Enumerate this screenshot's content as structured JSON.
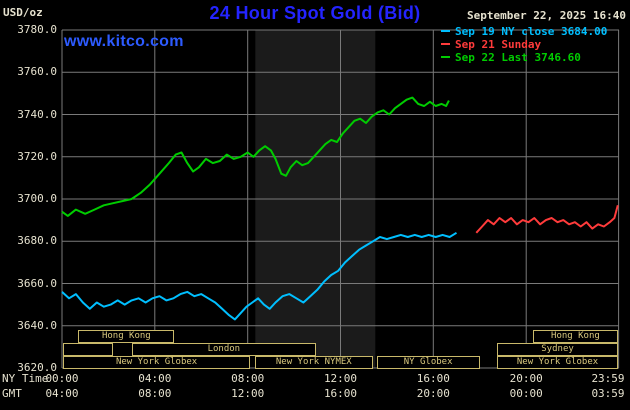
{
  "header": {
    "units": "USD/oz",
    "title": "24 Hour Spot Gold (Bid)",
    "timestamp": "September 22, 2025 16:40",
    "watermark": "www.kitco.com",
    "legend": [
      {
        "label": "Sep 19 NY close 3684.00",
        "color": "#00bfff"
      },
      {
        "label": "Sep 21 Sunday",
        "color": "#ff3b3b"
      },
      {
        "label": "Sep 22 Last 3746.60",
        "color": "#00cc00"
      }
    ]
  },
  "axes": {
    "ny_label": "NY Time",
    "gmt_label": "GMT"
  },
  "colors": {
    "background": "#000000",
    "grid": "#7a7a7a",
    "band": "#1b1b1b",
    "axis_text": "#e6e2cf",
    "title": "#2424ff",
    "watermark": "#2d5bff",
    "session_border": "#c9b96a",
    "session_text": "#d8c87e"
  },
  "chart_data": {
    "type": "line",
    "title": "24 Hour Spot Gold (Bid)",
    "ylabel": "USD/oz",
    "ylim": [
      3620,
      3780
    ],
    "grid": true,
    "legend_position": "top-right",
    "yticks": [
      {
        "value": 3780,
        "label": "3780.0"
      },
      {
        "value": 3760,
        "label": "3760.0"
      },
      {
        "value": 3740,
        "label": "3740.0"
      },
      {
        "value": 3720,
        "label": "3720.0"
      },
      {
        "value": 3700,
        "label": "3700.0"
      },
      {
        "value": 3680,
        "label": "3680.0"
      },
      {
        "value": 3660,
        "label": "3660.0"
      },
      {
        "value": 3640,
        "label": "3640.0"
      },
      {
        "value": 3620,
        "label": "3620.0"
      }
    ],
    "xticks": [
      {
        "hour": 0,
        "ny": "00:00",
        "gmt": "04:00"
      },
      {
        "hour": 4,
        "ny": "04:00",
        "gmt": "08:00"
      },
      {
        "hour": 8,
        "ny": "08:00",
        "gmt": "12:00"
      },
      {
        "hour": 12,
        "ny": "12:00",
        "gmt": "16:00"
      },
      {
        "hour": 16,
        "ny": "16:00",
        "gmt": "20:00"
      },
      {
        "hour": 20,
        "ny": "20:00",
        "gmt": "00:00"
      },
      {
        "hour": 23.983,
        "ny": "23:59",
        "gmt": "03:59"
      }
    ],
    "band": {
      "hours": [
        8.33,
        13.5
      ]
    },
    "series": [
      {
        "id": "sep19",
        "name": "Sep 19 NY close",
        "color": "#00bfff",
        "close": 3684.0,
        "points": [
          [
            0,
            3656
          ],
          [
            0.3,
            3653
          ],
          [
            0.6,
            3655
          ],
          [
            0.9,
            3651
          ],
          [
            1.2,
            3648
          ],
          [
            1.5,
            3651
          ],
          [
            1.8,
            3649
          ],
          [
            2.1,
            3650
          ],
          [
            2.4,
            3652
          ],
          [
            2.7,
            3650
          ],
          [
            3.0,
            3652
          ],
          [
            3.3,
            3653
          ],
          [
            3.6,
            3651
          ],
          [
            3.9,
            3653
          ],
          [
            4.2,
            3654
          ],
          [
            4.5,
            3652
          ],
          [
            4.8,
            3653
          ],
          [
            5.1,
            3655
          ],
          [
            5.4,
            3656
          ],
          [
            5.7,
            3654
          ],
          [
            6.0,
            3655
          ],
          [
            6.3,
            3653
          ],
          [
            6.6,
            3651
          ],
          [
            6.9,
            3648
          ],
          [
            7.2,
            3645
          ],
          [
            7.45,
            3643
          ],
          [
            7.7,
            3646
          ],
          [
            7.95,
            3649
          ],
          [
            8.2,
            3651
          ],
          [
            8.45,
            3653
          ],
          [
            8.7,
            3650
          ],
          [
            8.95,
            3648
          ],
          [
            9.2,
            3651
          ],
          [
            9.5,
            3654
          ],
          [
            9.8,
            3655
          ],
          [
            10.1,
            3653
          ],
          [
            10.4,
            3651
          ],
          [
            10.7,
            3654
          ],
          [
            11.0,
            3657
          ],
          [
            11.3,
            3661
          ],
          [
            11.6,
            3664
          ],
          [
            11.9,
            3666
          ],
          [
            12.2,
            3670
          ],
          [
            12.5,
            3673
          ],
          [
            12.8,
            3676
          ],
          [
            13.1,
            3678
          ],
          [
            13.4,
            3680
          ],
          [
            13.7,
            3682
          ],
          [
            14.0,
            3681
          ],
          [
            14.3,
            3682
          ],
          [
            14.6,
            3683
          ],
          [
            14.9,
            3682
          ],
          [
            15.2,
            3683
          ],
          [
            15.5,
            3682
          ],
          [
            15.8,
            3683
          ],
          [
            16.1,
            3682
          ],
          [
            16.4,
            3683
          ],
          [
            16.7,
            3682
          ],
          [
            17.0,
            3684
          ]
        ]
      },
      {
        "id": "sep21",
        "name": "Sep 21 Sunday",
        "color": "#ff3b3b",
        "points": [
          [
            17.85,
            3684
          ],
          [
            18.1,
            3687
          ],
          [
            18.35,
            3690
          ],
          [
            18.6,
            3688
          ],
          [
            18.85,
            3691
          ],
          [
            19.1,
            3689
          ],
          [
            19.35,
            3691
          ],
          [
            19.6,
            3688
          ],
          [
            19.85,
            3690
          ],
          [
            20.1,
            3689
          ],
          [
            20.35,
            3691
          ],
          [
            20.6,
            3688
          ],
          [
            20.85,
            3690
          ],
          [
            21.1,
            3691
          ],
          [
            21.35,
            3689
          ],
          [
            21.6,
            3690
          ],
          [
            21.85,
            3688
          ],
          [
            22.1,
            3689
          ],
          [
            22.35,
            3687
          ],
          [
            22.6,
            3689
          ],
          [
            22.85,
            3686
          ],
          [
            23.1,
            3688
          ],
          [
            23.35,
            3687
          ],
          [
            23.6,
            3689
          ],
          [
            23.8,
            3691
          ],
          [
            23.95,
            3697
          ]
        ]
      },
      {
        "id": "sep22",
        "name": "Sep 22 Last",
        "color": "#00cc00",
        "last": 3746.6,
        "points": [
          [
            0,
            3694
          ],
          [
            0.25,
            3692
          ],
          [
            0.6,
            3695
          ],
          [
            1.0,
            3693
          ],
          [
            1.4,
            3695
          ],
          [
            1.8,
            3697
          ],
          [
            2.2,
            3698
          ],
          [
            2.6,
            3699
          ],
          [
            3.0,
            3700
          ],
          [
            3.4,
            3703
          ],
          [
            3.8,
            3707
          ],
          [
            4.2,
            3712
          ],
          [
            4.6,
            3717
          ],
          [
            4.9,
            3721
          ],
          [
            5.15,
            3722
          ],
          [
            5.4,
            3717
          ],
          [
            5.65,
            3713
          ],
          [
            5.9,
            3715
          ],
          [
            6.2,
            3719
          ],
          [
            6.5,
            3717
          ],
          [
            6.8,
            3718
          ],
          [
            7.1,
            3721
          ],
          [
            7.4,
            3719
          ],
          [
            7.7,
            3720
          ],
          [
            8.0,
            3722
          ],
          [
            8.25,
            3720
          ],
          [
            8.5,
            3723
          ],
          [
            8.75,
            3725
          ],
          [
            9.0,
            3723
          ],
          [
            9.2,
            3719
          ],
          [
            9.45,
            3712
          ],
          [
            9.65,
            3711
          ],
          [
            9.85,
            3715
          ],
          [
            10.1,
            3718
          ],
          [
            10.35,
            3716
          ],
          [
            10.6,
            3717
          ],
          [
            10.85,
            3720
          ],
          [
            11.1,
            3723
          ],
          [
            11.35,
            3726
          ],
          [
            11.6,
            3728
          ],
          [
            11.85,
            3727
          ],
          [
            12.1,
            3731
          ],
          [
            12.35,
            3734
          ],
          [
            12.6,
            3737
          ],
          [
            12.85,
            3738
          ],
          [
            13.1,
            3736
          ],
          [
            13.35,
            3739
          ],
          [
            13.6,
            3741
          ],
          [
            13.85,
            3742
          ],
          [
            14.1,
            3740
          ],
          [
            14.35,
            3743
          ],
          [
            14.6,
            3745
          ],
          [
            14.85,
            3747
          ],
          [
            15.1,
            3748
          ],
          [
            15.35,
            3745
          ],
          [
            15.6,
            3744
          ],
          [
            15.85,
            3746
          ],
          [
            16.1,
            3744
          ],
          [
            16.35,
            3745
          ],
          [
            16.55,
            3744
          ],
          [
            16.67,
            3746.6
          ]
        ]
      }
    ]
  },
  "sessions": [
    {
      "row": 0,
      "label": "Hong Kong",
      "start": 0.7,
      "end": 4.85
    },
    {
      "row": 0,
      "label": "Hong Kong",
      "start": 20.3,
      "end": 23.95
    },
    {
      "row": 1,
      "label": "",
      "start": 0.05,
      "end": 2.2
    },
    {
      "row": 1,
      "label": "London",
      "start": 3.0,
      "end": 10.95
    },
    {
      "row": 1,
      "label": "Sydney",
      "start": 18.75,
      "end": 23.95
    },
    {
      "row": 2,
      "label": "New York Globex",
      "start": 0.05,
      "end": 8.1
    },
    {
      "row": 2,
      "label": "New York NYMEX",
      "start": 8.3,
      "end": 13.4
    },
    {
      "row": 2,
      "label": "NY Globex",
      "start": 13.55,
      "end": 18.0
    },
    {
      "row": 2,
      "label": "New York Globex",
      "start": 18.75,
      "end": 23.95
    }
  ]
}
